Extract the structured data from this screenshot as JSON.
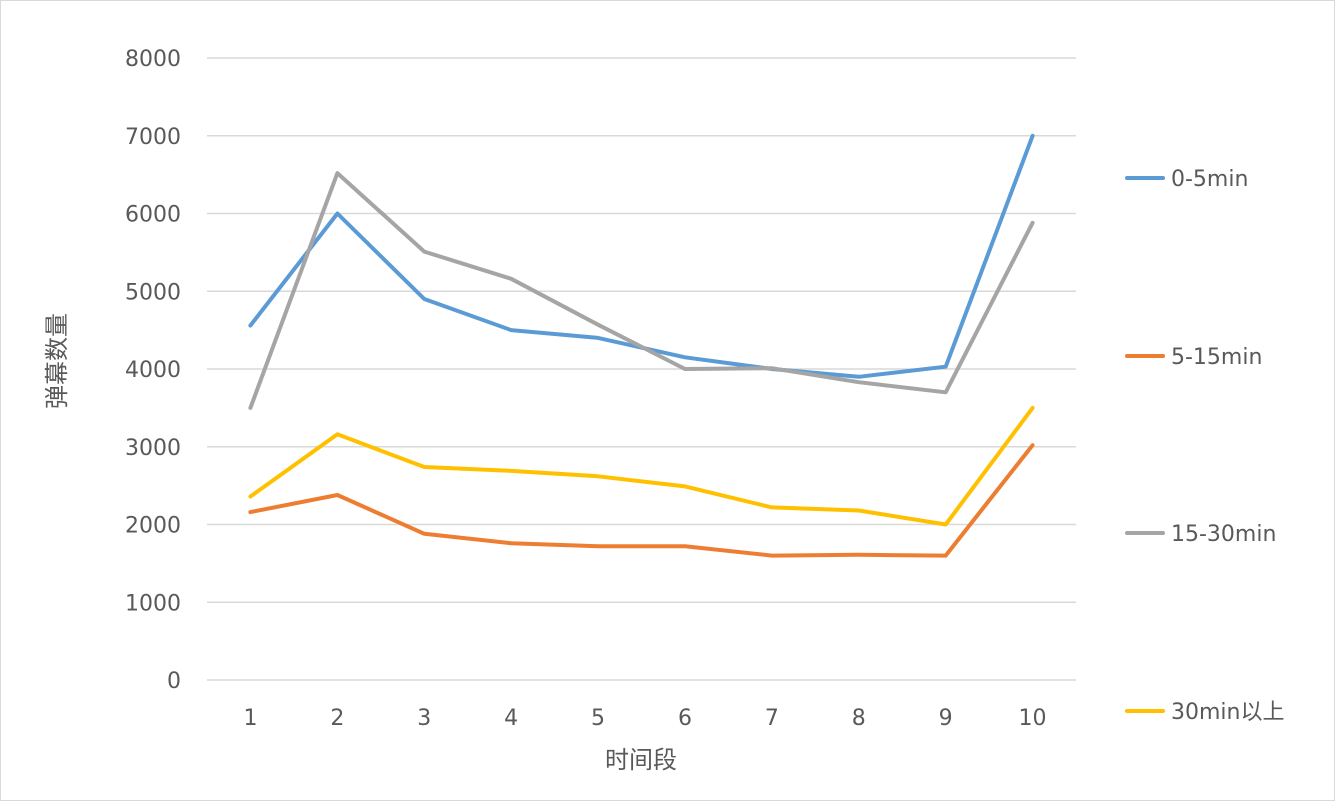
{
  "chart_data": {
    "type": "line",
    "title": "",
    "xlabel": "时间段",
    "ylabel": "弹幕数量",
    "categories": [
      "1",
      "2",
      "3",
      "4",
      "5",
      "6",
      "7",
      "8",
      "9",
      "10"
    ],
    "ylim": [
      0,
      8000
    ],
    "yticks": [
      0,
      1000,
      2000,
      3000,
      4000,
      5000,
      6000,
      7000,
      8000
    ],
    "grid": true,
    "legend_position": "right",
    "series": [
      {
        "name": "0-5min",
        "color": "#5B9BD5",
        "values": [
          4560,
          6000,
          4900,
          4500,
          4400,
          4150,
          4000,
          3900,
          4030,
          7000
        ]
      },
      {
        "name": "5-15min",
        "color": "#ED7D31",
        "values": [
          2160,
          2380,
          1880,
          1760,
          1720,
          1720,
          1600,
          1610,
          1600,
          3020
        ]
      },
      {
        "name": "15-30min",
        "color": "#A5A5A5",
        "values": [
          3500,
          6520,
          5510,
          5160,
          4570,
          4000,
          4010,
          3830,
          3700,
          5880
        ]
      },
      {
        "name": "30min以上",
        "color": "#FFC000",
        "values": [
          2360,
          3160,
          2740,
          2690,
          2620,
          2490,
          2220,
          2180,
          2000,
          3500
        ]
      }
    ]
  }
}
